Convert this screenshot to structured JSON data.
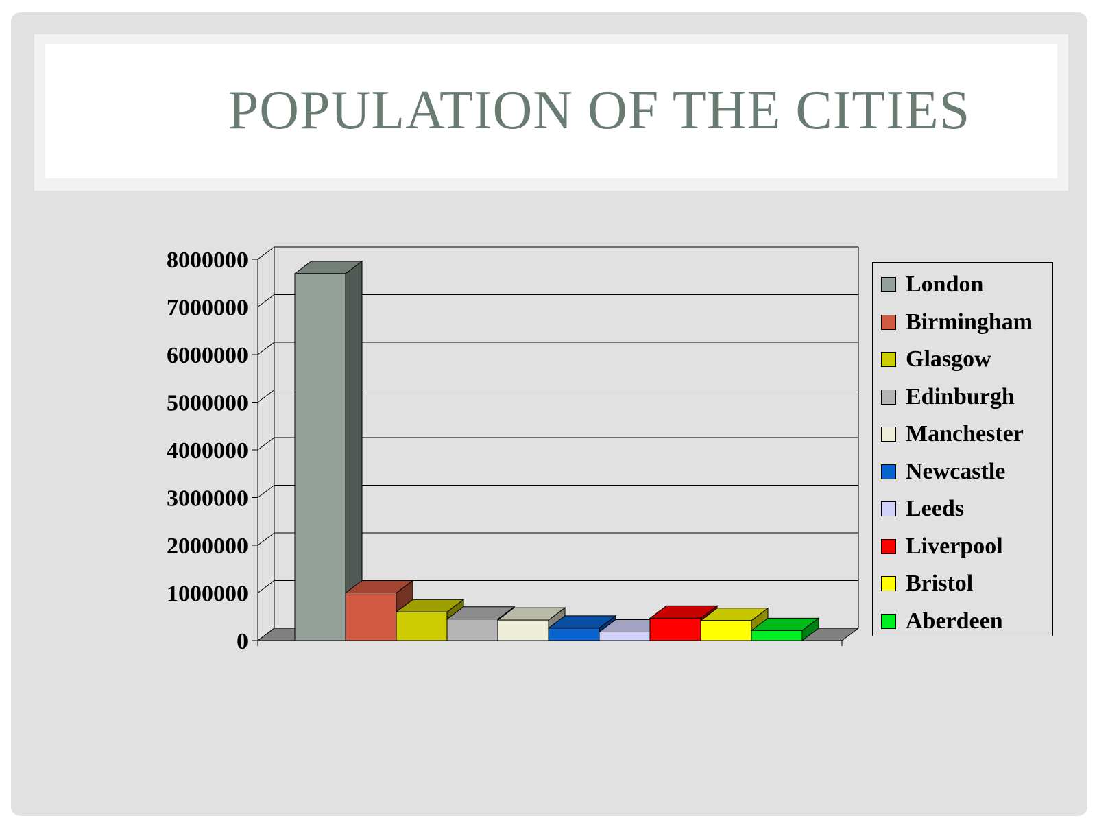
{
  "slide": {
    "title": "POPULATION OF THE CITIES"
  },
  "chart_data": {
    "type": "bar",
    "title": "",
    "xlabel": "",
    "ylabel": "",
    "ylim": [
      0,
      8000000
    ],
    "yticks": [
      "0",
      "1000000",
      "2000000",
      "3000000",
      "4000000",
      "5000000",
      "6000000",
      "7000000",
      "8000000"
    ],
    "grid": true,
    "legend_position": "right",
    "series": [
      {
        "name": "London",
        "value": 7700000,
        "color": "#93a199"
      },
      {
        "name": "Birmingham",
        "value": 1000000,
        "color": "#d05a42"
      },
      {
        "name": "Glasgow",
        "value": 600000,
        "color": "#cccc00"
      },
      {
        "name": "Edinburgh",
        "value": 450000,
        "color": "#b4b4b4"
      },
      {
        "name": "Manchester",
        "value": 430000,
        "color": "#eeeed8"
      },
      {
        "name": "Newcastle",
        "value": 260000,
        "color": "#0a64d0"
      },
      {
        "name": "Leeds",
        "value": 180000,
        "color": "#d0d0f8"
      },
      {
        "name": "Liverpool",
        "value": 470000,
        "color": "#ff0000"
      },
      {
        "name": "Bristol",
        "value": 420000,
        "color": "#ffff00"
      },
      {
        "name": "Aberdeen",
        "value": 210000,
        "color": "#00ee22"
      }
    ]
  }
}
